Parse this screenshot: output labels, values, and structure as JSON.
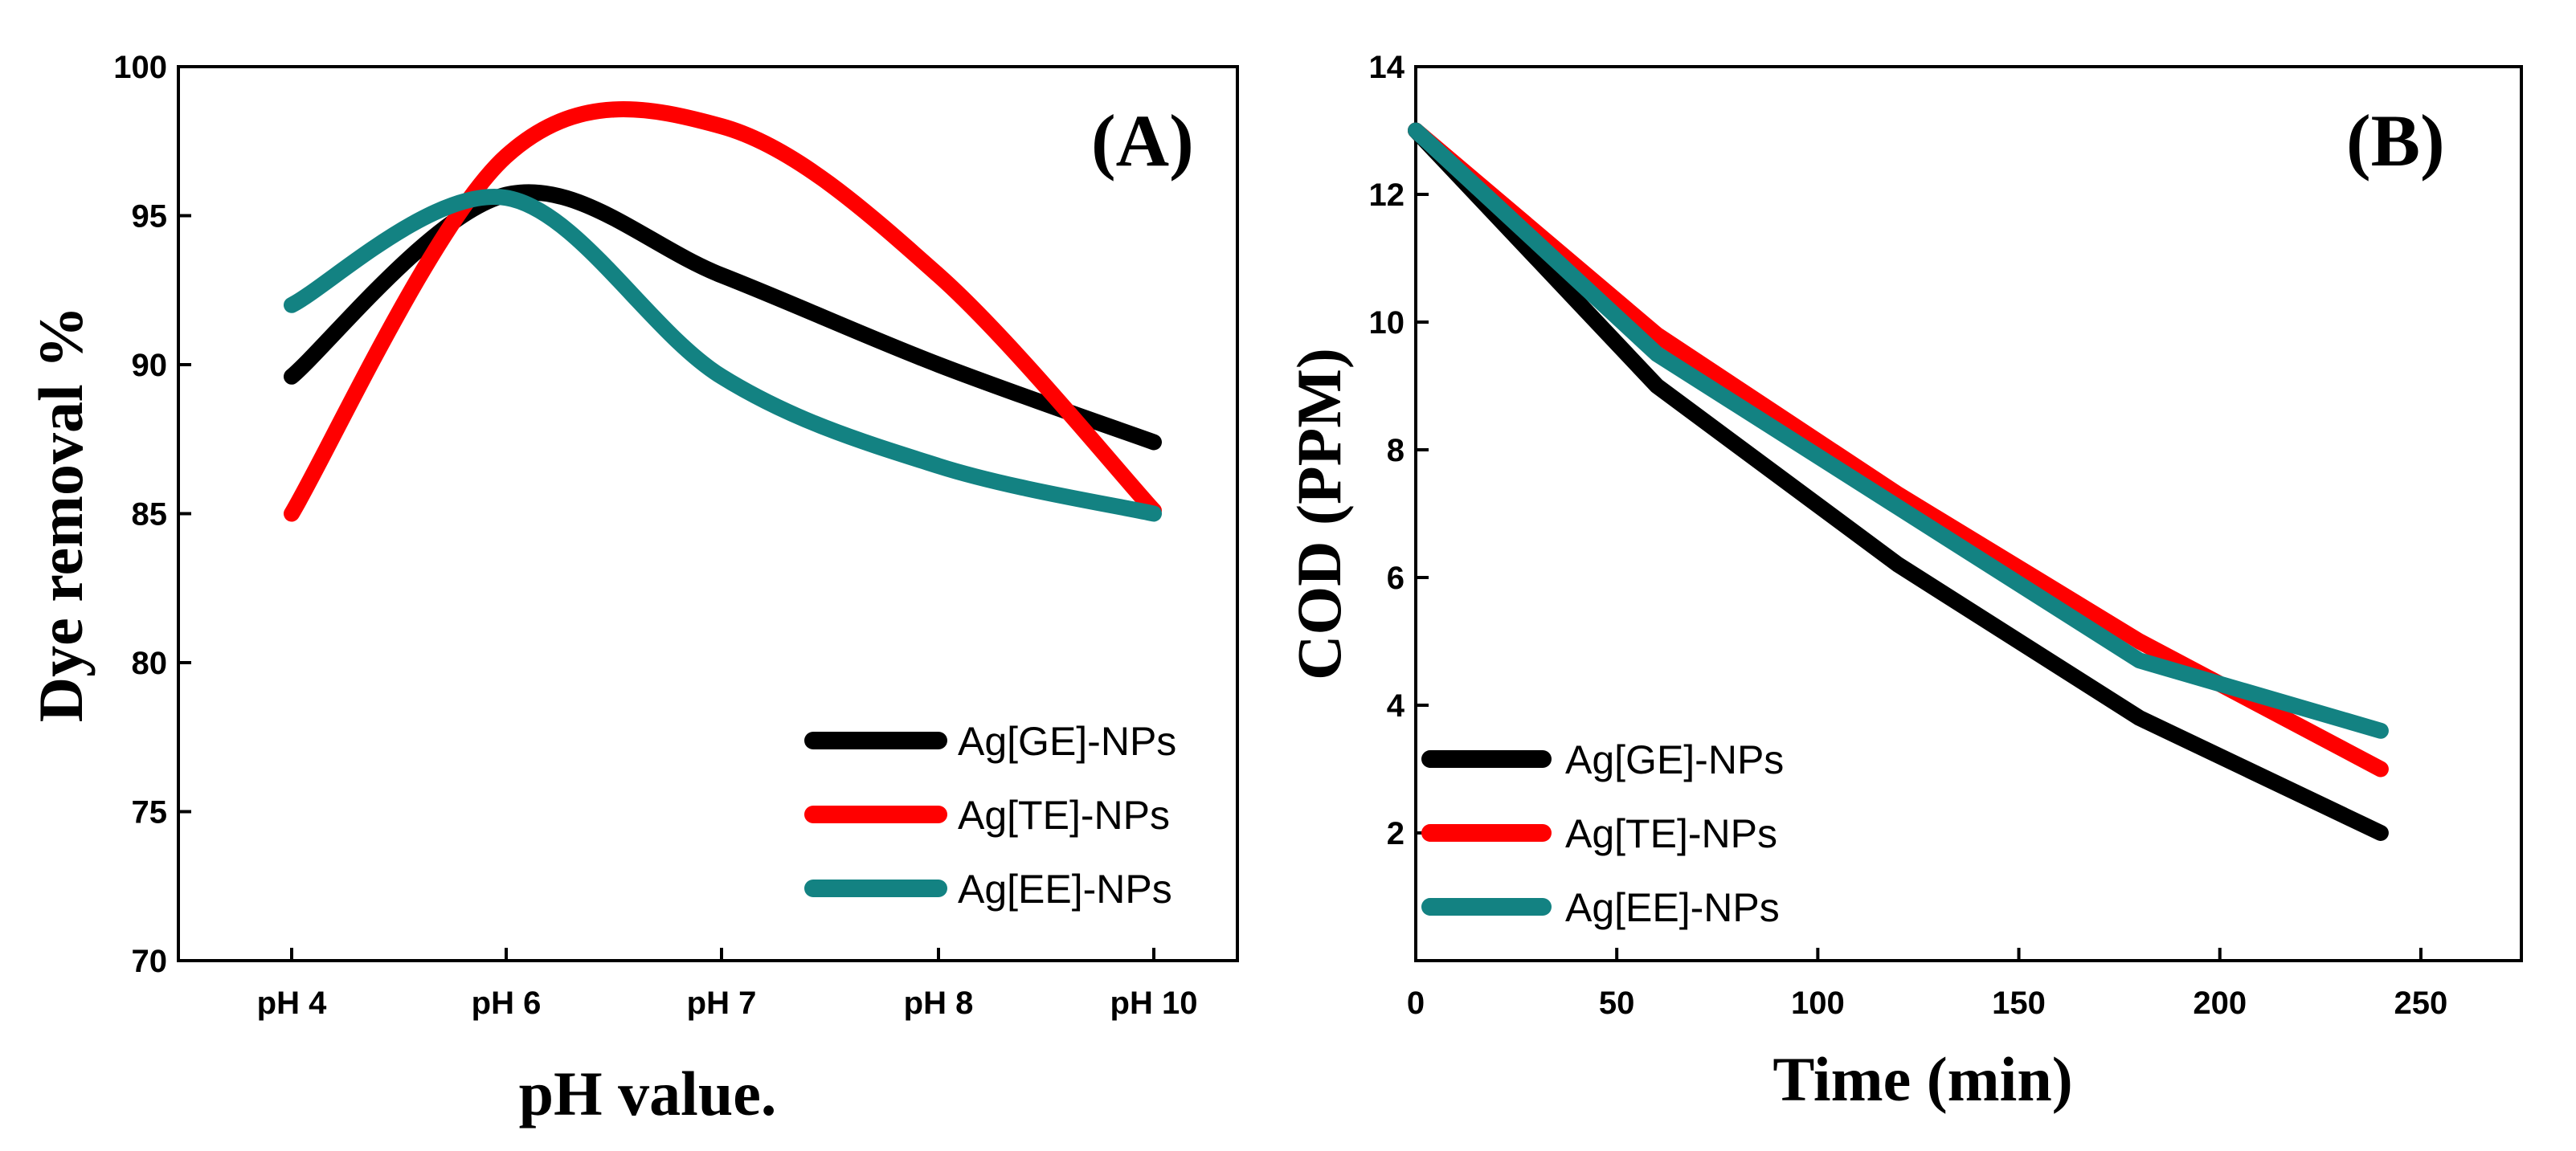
{
  "chart_data": [
    {
      "type": "line",
      "panel_label": "(A)",
      "xlabel": "pH value.",
      "ylabel": "Dye removal %",
      "categories": [
        "pH 4",
        "pH 6",
        "pH 7",
        "pH 8",
        "pH 10"
      ],
      "ylim": [
        70,
        100
      ],
      "yticks": [
        70,
        75,
        80,
        85,
        90,
        95,
        100
      ],
      "legend_position": "bottom-right",
      "series": [
        {
          "name": "Ag[GE]-NPs",
          "color": "#000000",
          "values": [
            89.6,
            95.7,
            93.0,
            90.0,
            87.4
          ]
        },
        {
          "name": "Ag[TE]-NPs",
          "color": "#ff0000",
          "values": [
            85.0,
            97.0,
            98.0,
            93.0,
            85.1
          ]
        },
        {
          "name": "Ag[EE]-NPs",
          "color": "#138282",
          "values": [
            92.0,
            95.6,
            89.6,
            86.6,
            85.0
          ]
        }
      ]
    },
    {
      "type": "line",
      "panel_label": "(B)",
      "xlabel": "Time (min)",
      "ylabel": "COD (PPM)",
      "xlim": [
        0,
        275
      ],
      "xticks": [
        0,
        50,
        100,
        150,
        200,
        250
      ],
      "ylim": [
        0,
        14
      ],
      "yticks": [
        2,
        4,
        6,
        8,
        10,
        12,
        14
      ],
      "legend_position": "bottom-left",
      "series": [
        {
          "name": "Ag[GE]-NPs",
          "color": "#000000",
          "x": [
            0,
            60,
            120,
            180,
            240
          ],
          "values": [
            13.0,
            9.0,
            6.2,
            3.8,
            2.0
          ]
        },
        {
          "name": "Ag[TE]-NPs",
          "color": "#ff0000",
          "x": [
            0,
            60,
            120,
            180,
            240
          ],
          "values": [
            13.0,
            9.8,
            7.3,
            5.0,
            3.0
          ]
        },
        {
          "name": "Ag[EE]-NPs",
          "color": "#138282",
          "x": [
            0,
            60,
            120,
            180,
            240
          ],
          "values": [
            13.0,
            9.5,
            7.1,
            4.7,
            3.6
          ]
        }
      ]
    }
  ]
}
